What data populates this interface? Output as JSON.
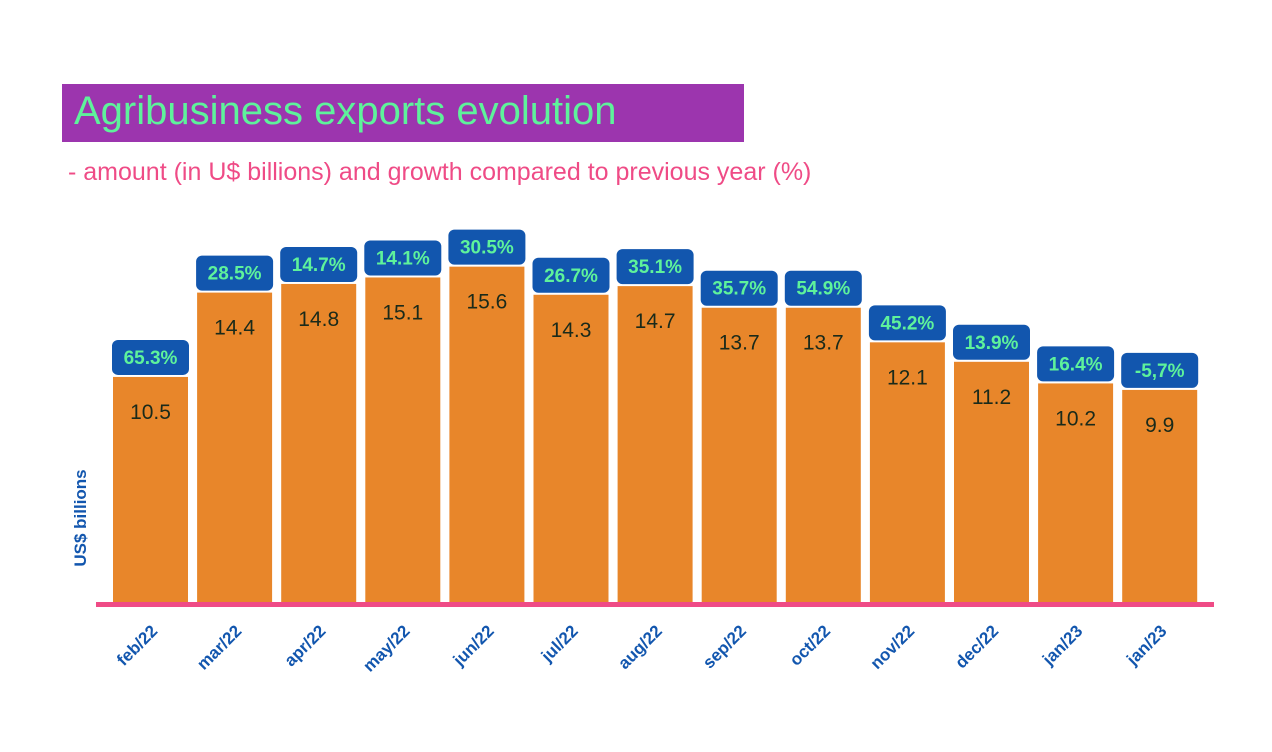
{
  "chart_data": {
    "type": "bar",
    "title": "Agribusiness exports evolution",
    "subtitle": "- amount (in U$ billions) and growth compared to previous year (%)",
    "ylabel": "US$ billions",
    "xlabel": "",
    "categories": [
      "feb/22",
      "mar/22",
      "apr/22",
      "may/22",
      "jun/22",
      "jul/22",
      "aug/22",
      "sep/22",
      "oct/22",
      "nov/22",
      "dec/22",
      "jan/23",
      "jan/23"
    ],
    "values": [
      10.5,
      14.4,
      14.8,
      15.1,
      15.6,
      14.3,
      14.7,
      13.7,
      13.7,
      12.1,
      11.2,
      10.2,
      9.9
    ],
    "value_labels": [
      "10.5",
      "14.4",
      "14.8",
      "15.1",
      "15.6",
      "14.3",
      "14.7",
      "13.7",
      "13.7",
      "12.1",
      "11.2",
      "10.2",
      "9.9"
    ],
    "growth_labels": [
      "65.3%",
      "28.5%",
      "14.7%",
      "14.1%",
      "30.5%",
      "26.7%",
      "35.1%",
      "35.7%",
      "54.9%",
      "45.2%",
      "13.9%",
      "16.4%",
      "-5,7%"
    ],
    "ylim": [
      0,
      16
    ],
    "grid": false,
    "colors": {
      "bar": "#e8862a",
      "badge": "#1256ae",
      "badge_text": "#5ef29b",
      "axis": "#ef4b86",
      "tick_text": "#1256ae",
      "value_text": "#1a2a1a",
      "title_bg": "#9c35ae",
      "title_text": "#5ef29b",
      "subtitle_text": "#ef4b86"
    }
  }
}
